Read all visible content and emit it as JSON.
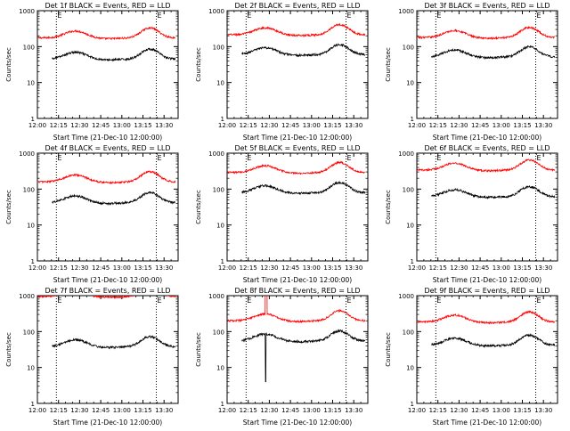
{
  "chart_data": [
    {
      "type": "line",
      "title": "Det 1f BLACK = Events, RED = LLD",
      "xlabel": "Start Time (21-Dec-10 12:00:00)",
      "ylabel": "Counts/sec",
      "markers": [
        "E",
        "E"
      ],
      "base_black": 45,
      "base_red": 175
    },
    {
      "type": "line",
      "title": "Det 2f BLACK = Events, RED = LLD",
      "xlabel": "Start Time (21-Dec-10 12:00:00)",
      "ylabel": "Counts/sec",
      "markers": [
        "E",
        "E"
      ],
      "base_black": 60,
      "base_red": 215
    },
    {
      "type": "line",
      "title": "Det 3f BLACK = Events, RED = LLD",
      "xlabel": "Start Time (21-Dec-10 12:00:00)",
      "ylabel": "Counts/sec",
      "markers": [
        "E",
        "E"
      ],
      "base_black": 52,
      "base_red": 180
    },
    {
      "type": "line",
      "title": "Det 4f BLACK = Events, RED = LLD",
      "xlabel": "Start Time (21-Dec-10 12:00:00)",
      "ylabel": "Counts/sec",
      "markers": [
        "E",
        "E"
      ],
      "base_black": 42,
      "base_red": 160
    },
    {
      "type": "line",
      "title": "Det 5f BLACK = Events, RED = LLD",
      "xlabel": "Start Time (21-Dec-10 12:00:00)",
      "ylabel": "Counts/sec",
      "markers": [
        "E",
        "E"
      ],
      "base_black": 80,
      "base_red": 290
    },
    {
      "type": "line",
      "title": "Det 6f BLACK = Events, RED = LLD",
      "xlabel": "Start Time (21-Dec-10 12:00:00)",
      "ylabel": "Counts/sec",
      "markers": [
        "E",
        "E"
      ],
      "base_black": 62,
      "base_red": 340
    },
    {
      "type": "line",
      "title": "Det 7f BLACK = Events, RED = LLD",
      "xlabel": "Start Time (21-Dec-10 12:00:00)",
      "ylabel": "Counts/sec",
      "markers": [
        "E",
        "E"
      ],
      "base_black": 38,
      "base_red": 950
    },
    {
      "type": "line",
      "title": "Det 8f BLACK = Events, RED = LLD",
      "xlabel": "Start Time (21-Dec-10 12:00:00)",
      "ylabel": "Counts/sec",
      "markers": [
        "E",
        "E"
      ],
      "base_black": 55,
      "base_red": 200
    },
    {
      "type": "line",
      "title": "Det 9f BLACK = Events, RED = LLD",
      "xlabel": "Start Time (21-Dec-10 12:00:00)",
      "ylabel": "Counts/sec",
      "markers": [
        "E",
        "E"
      ],
      "base_black": 42,
      "base_red": 185
    }
  ],
  "axes": {
    "x_ticks": [
      "12:00",
      "12:15",
      "12:30",
      "12:45",
      "13:00",
      "13:15",
      "13:30"
    ],
    "x_tick_minutes": [
      0,
      15,
      30,
      45,
      60,
      75,
      90
    ],
    "x_range_minutes": [
      0,
      100
    ],
    "y_ticks": [
      "1",
      "10",
      "100",
      "1000"
    ],
    "y_tick_values": [
      1,
      10,
      100,
      1000
    ],
    "y_range": [
      1,
      1000
    ],
    "y_scale": "log",
    "vlines_minutes": [
      13.5,
      84.5
    ]
  },
  "colors": {
    "events": "#000000",
    "lld": "#ff0000"
  }
}
